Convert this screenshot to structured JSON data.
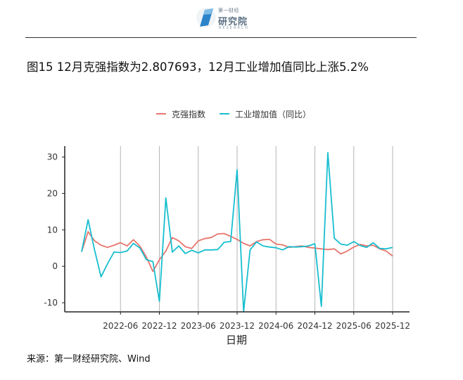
{
  "header": {
    "brand_top": "第一财经",
    "brand_main": "研究院",
    "brand_sub": "RESEARCH"
  },
  "figure_title": "图15 12月克强指数为2.807693，12月工业增加值同比上涨5.2%",
  "source_note": "来源：第一财经研究院、Wind",
  "colors": {
    "keqiang": "#e8756d",
    "industrial": "#17becf",
    "grid": "#b5b5b5",
    "axis": "#222222"
  },
  "chart_data": {
    "type": "line",
    "xlabel": "日期",
    "ylabel": "",
    "x_start": "2021-12",
    "x": [
      "2021-12",
      "2022-01",
      "2022-02",
      "2022-03",
      "2022-04",
      "2022-05",
      "2022-06",
      "2022-07",
      "2022-08",
      "2022-09",
      "2022-10",
      "2022-11",
      "2022-12",
      "2023-01",
      "2023-02",
      "2023-03",
      "2023-04",
      "2023-05",
      "2023-06",
      "2023-07",
      "2023-08",
      "2023-09",
      "2023-10",
      "2023-11",
      "2023-12",
      "2024-01",
      "2024-02",
      "2024-03",
      "2024-04",
      "2024-05",
      "2024-06",
      "2024-07",
      "2024-08",
      "2024-09",
      "2024-10",
      "2024-11",
      "2024-12",
      "2025-01",
      "2025-02",
      "2025-03",
      "2025-04",
      "2025-05",
      "2025-06",
      "2025-07",
      "2025-08",
      "2025-09",
      "2025-10",
      "2025-11",
      "2025-12"
    ],
    "x_ticks": [
      "2022-06",
      "2022-12",
      "2023-06",
      "2023-12",
      "2024-06",
      "2024-12",
      "2025-06",
      "2025-12"
    ],
    "ylim": [
      -12.5,
      33
    ],
    "y_ticks": [
      -10,
      0,
      10,
      20,
      30
    ],
    "grid": "vertical at x ticks",
    "legend_position": "top",
    "series": [
      {
        "name": "克强指数",
        "color": "#e8756d",
        "values": [
          4.0,
          9.5,
          7.0,
          5.8,
          5.2,
          5.8,
          6.5,
          5.6,
          7.3,
          5.5,
          2.5,
          -1.4,
          1.8,
          4.2,
          7.9,
          7.0,
          5.4,
          4.9,
          7.0,
          7.6,
          7.9,
          8.9,
          9.0,
          8.2,
          7.4,
          6.3,
          5.6,
          6.8,
          7.3,
          7.4,
          6.1,
          5.9,
          5.2,
          5.4,
          5.6,
          5.2,
          5.0,
          4.8,
          4.6,
          4.8,
          3.4,
          4.2,
          5.3,
          6.0,
          5.6,
          5.8,
          4.8,
          4.2,
          2.8
        ]
      },
      {
        "name": "工业增加值（同比）",
        "color": "#17becf",
        "values": [
          4.0,
          12.8,
          4.5,
          -2.9,
          0.7,
          3.9,
          3.8,
          4.2,
          6.3,
          5.0,
          1.8,
          1.3,
          -9.6,
          18.8,
          3.9,
          5.6,
          3.5,
          4.4,
          3.7,
          4.5,
          4.5,
          4.6,
          6.6,
          6.8,
          26.5,
          -12.4,
          4.5,
          6.7,
          5.6,
          5.3,
          5.1,
          4.5,
          5.4,
          5.3,
          5.4,
          5.6,
          6.2,
          -11.0,
          31.2,
          7.7,
          6.1,
          5.8,
          6.8,
          5.7,
          5.2,
          6.5,
          4.9,
          4.8,
          5.2
        ]
      }
    ]
  }
}
